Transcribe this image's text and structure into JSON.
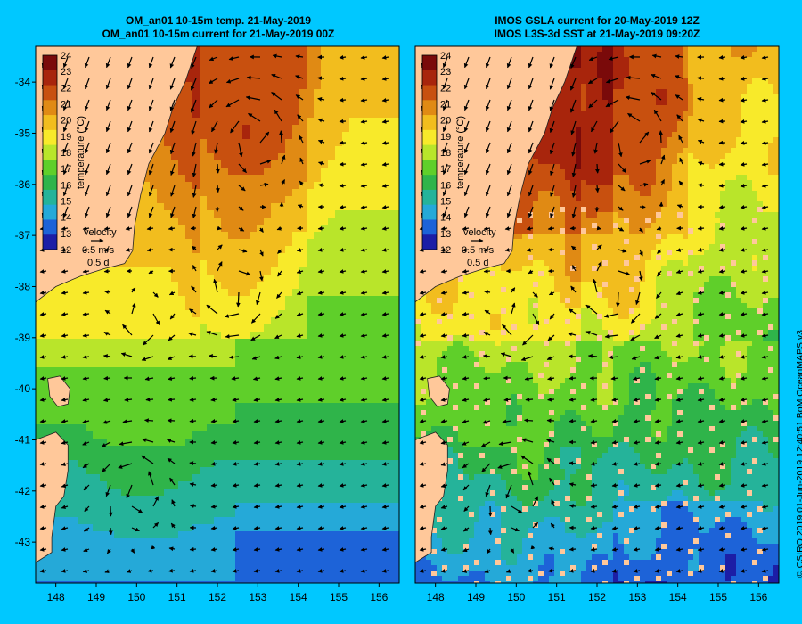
{
  "panels": [
    {
      "id": "left",
      "title_line1": "OM_an01 10-15m temp. 21-May-2019",
      "title_line2": "OM_an01 10-15m current for 21-May-2019 00Z"
    },
    {
      "id": "right",
      "title_line1": "IMOS GSLA current for 20-May-2019 12Z",
      "title_line2": "IMOS L3S-3d SST at 21-May-2019 09:20Z"
    }
  ],
  "axes": {
    "lon_ticks": [
      "148",
      "149",
      "150",
      "151",
      "152",
      "153",
      "154",
      "155",
      "156"
    ],
    "lat_ticks": [
      "-34",
      "-35",
      "-36",
      "-37",
      "-38",
      "-39",
      "-40",
      "-41",
      "-42",
      "-43"
    ]
  },
  "colorbar": {
    "label": "temperature (°C)",
    "ticks": [
      "24",
      "23",
      "22",
      "21",
      "20",
      "19",
      "18",
      "17",
      "16",
      "15",
      "14",
      "13",
      "12"
    ],
    "colors": [
      "#7a0a0a",
      "#a8250c",
      "#c8500f",
      "#e08a14",
      "#f2bd1e",
      "#f8ea2a",
      "#b9e52a",
      "#5fcf2a",
      "#2fb44a",
      "#25b39a",
      "#25a9d8",
      "#1d63d8",
      "#1c1ea6"
    ]
  },
  "velocity_key": {
    "title": "velocity",
    "speed": "0.5 m/s",
    "duration": "0.5 d"
  },
  "credit": "© CSIRO 2019  01-Jun-2019 12:40:51 BoM OceanMAPS v3",
  "colors": {
    "background": "#00c8ff",
    "land": "#ffc89a"
  }
}
